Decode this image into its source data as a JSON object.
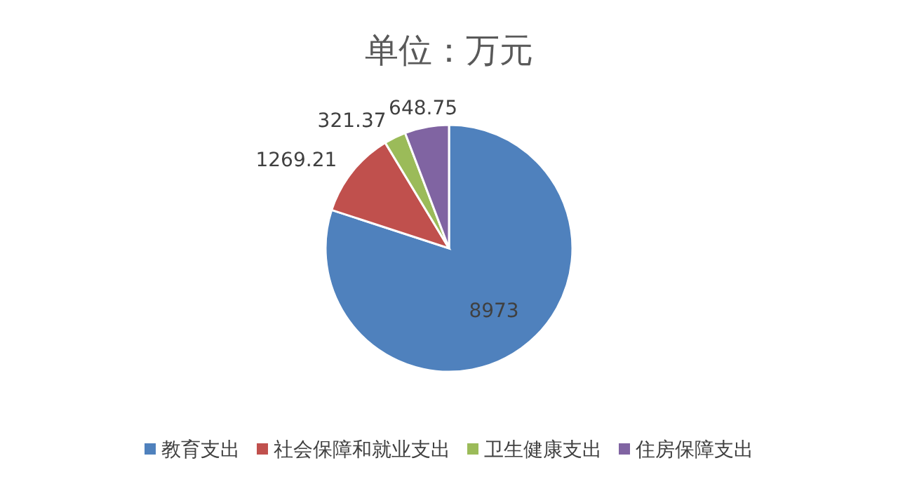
{
  "chart_data": {
    "type": "pie",
    "title": "单位：万元",
    "categories": [
      "教育支出",
      "社会保障和就业支出",
      "卫生健康支出",
      "住房保障支出"
    ],
    "values": [
      8973,
      1269.21,
      321.37,
      648.75
    ],
    "colors": [
      "#4f81bd",
      "#c0504d",
      "#9bbb59",
      "#8064a2"
    ],
    "data_labels": true,
    "legend": "bottom"
  }
}
